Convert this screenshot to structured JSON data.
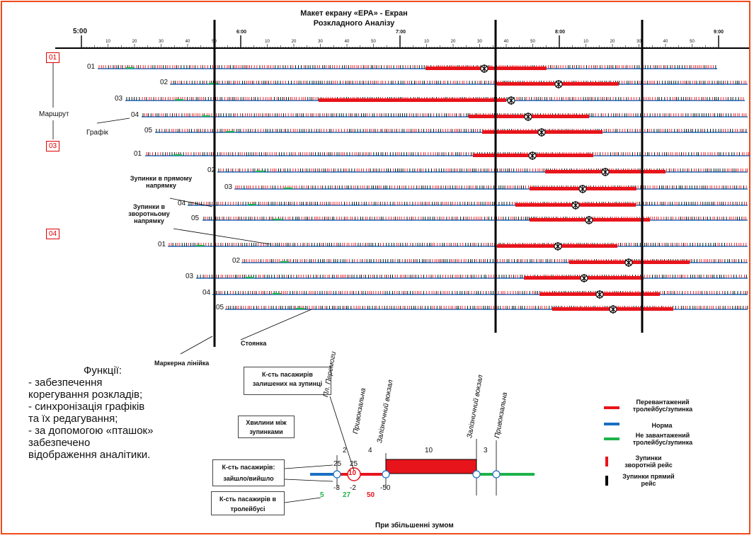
{
  "title_line1": "Макет екрану «ЕРА» - Екран",
  "title_line2": "Розкладного Аналізу",
  "timeline": {
    "hours": [
      "5:00",
      "6:00",
      "7:00",
      "8:00",
      "9:00"
    ],
    "minutes": [
      "10",
      "20",
      "30",
      "40",
      "50"
    ]
  },
  "routes": [
    {
      "label": "01",
      "schedules": [
        "01",
        "02",
        "03",
        "04",
        "05"
      ]
    },
    {
      "label": "03",
      "schedules": [
        "01",
        "02",
        "03",
        "04",
        "05"
      ]
    },
    {
      "label": "04",
      "schedules": [
        "01",
        "02",
        "03",
        "04",
        "05"
      ]
    }
  ],
  "annotations": {
    "route": "Маршрут",
    "schedule": "Графік",
    "stops_forward": "Зупинки в прямому напрямку",
    "stops_reverse": "Зупинки в зворотньому напрямку",
    "parking": "Стоянка",
    "marker_line": "Маркерна лінійка"
  },
  "functions": {
    "heading": "Функції:",
    "lines": [
      "- забезпечення",
      "корегування розкладів;",
      "- синхронізація графіків",
      "та їх редагування;",
      "- за допомогою «пташок»",
      "забезпечено",
      "відображення аналітики."
    ]
  },
  "zoom": {
    "caption": "При збільшенні зумом",
    "callouts": {
      "remaining": "К-сть пасажирів залишених на зупинці",
      "minutes": "Хвилини між зупинками",
      "in_out": "К-сть пасажирів: зайшло/вийшло",
      "in_bus": "К-сть пасажирів в тролейбусі"
    },
    "stops": [
      "Пл. Перемоги",
      "Привокзальна",
      "Залізничний вокзал",
      "Залізничний вокзал",
      "Привокзальна"
    ],
    "minutes": [
      "2",
      "4",
      "10",
      "3"
    ],
    "in": [
      "25",
      "25"
    ],
    "out": [
      "-3",
      "-2",
      "-50"
    ],
    "bubble": "10",
    "in_bus": [
      "5",
      "27",
      "50"
    ]
  },
  "legend": [
    {
      "color": "#e8141c",
      "label": "Перевантажений тролейбус/зупинка"
    },
    {
      "color": "#1a6fc2",
      "label": "Норма"
    },
    {
      "color": "#1db34a",
      "label": "Не завантажений тролейбус/зупинка"
    },
    {
      "color": "#e8141c",
      "label": "Зупинки зворотній рейс"
    },
    {
      "color": "#000000",
      "label": "Зупинки прямий рейс"
    }
  ]
}
